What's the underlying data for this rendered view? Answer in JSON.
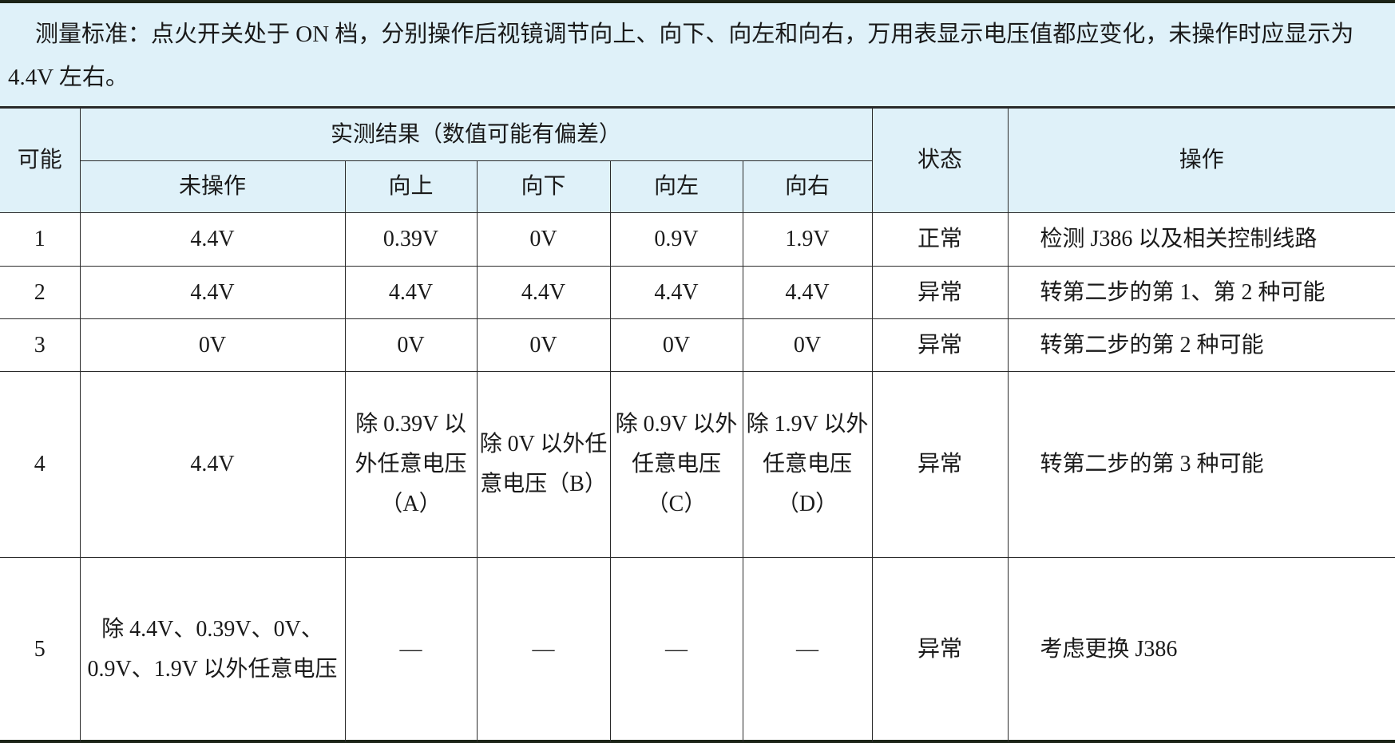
{
  "note": "测量标准：点火开关处于 ON 档，分别操作后视镜调节向上、向下、向左和向右，万用表显示电压值都应变化，未操作时应显示为4.4V 左右。",
  "headers": {
    "possible": "可能",
    "result": "实测结果（数值可能有偏差）",
    "status": "状态",
    "action": "操作",
    "sub": [
      "未操作",
      "向上",
      "向下",
      "向左",
      "向右"
    ]
  },
  "rows": [
    {
      "n": "1",
      "v": [
        "4.4V",
        "0.39V",
        "0V",
        "0.9V",
        "1.9V"
      ],
      "status": "正常",
      "action": "检测 J386 以及相关控制线路"
    },
    {
      "n": "2",
      "v": [
        "4.4V",
        "4.4V",
        "4.4V",
        "4.4V",
        "4.4V"
      ],
      "status": "异常",
      "action": "转第二步的第 1、第 2 种可能"
    },
    {
      "n": "3",
      "v": [
        "0V",
        "0V",
        "0V",
        "0V",
        "0V"
      ],
      "status": "异常",
      "action": "转第二步的第 2 种可能"
    },
    {
      "n": "4",
      "v": [
        "4.4V",
        "除 0.39V 以外任意电压（A）",
        "除 0V 以外任意电压（B）",
        "除 0.9V 以外任意电压（C）",
        "除 1.9V 以外任意电压（D）"
      ],
      "status": "异常",
      "action": "转第二步的第 3 种可能"
    },
    {
      "n": "5",
      "v": [
        "除 4.4V、0.39V、0V、0.9V、1.9V 以外任意电压",
        "—",
        "—",
        "—",
        "—"
      ],
      "status": "异常",
      "action": "考虑更换 J386"
    }
  ]
}
